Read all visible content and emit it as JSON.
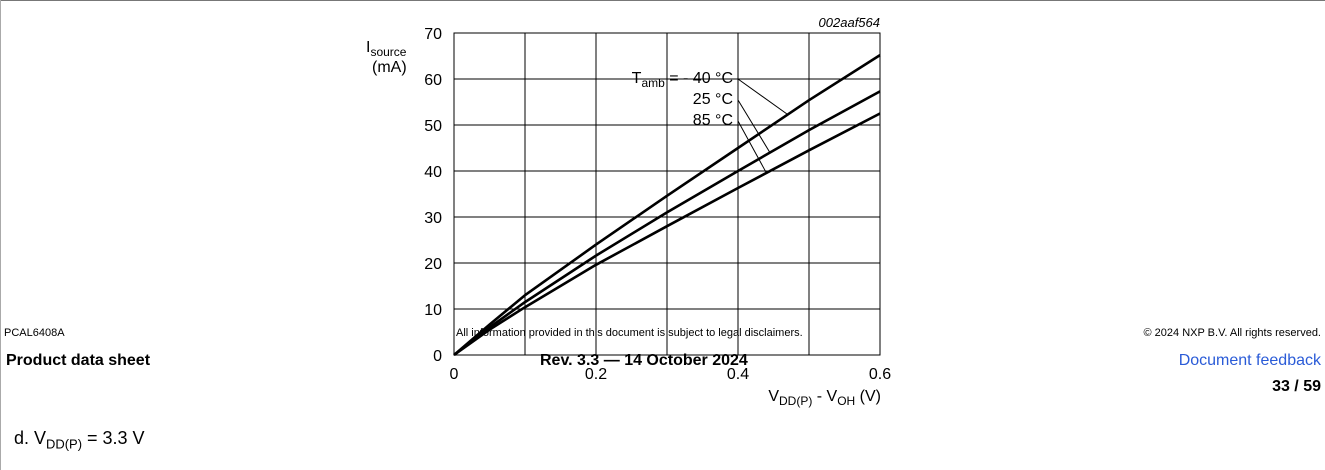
{
  "page": {
    "product": "PCAL6408A",
    "disclaimer": "All information provided in this document is subject to legal disclaimers.",
    "copyright": "© 2024 NXP B.V. All rights reserved.",
    "doc_type": "Product data sheet",
    "revision": "Rev. 3.3 — 14 October 2024",
    "feedback_link": "Document feedback",
    "page_number": "33 / 59"
  },
  "caption": {
    "prefix": "d. V",
    "sub": "DD(P)",
    "suffix": " = 3.3 V"
  },
  "chart_data": {
    "type": "line",
    "figure_id": "002aaf564",
    "ylabel_main": "I",
    "ylabel_sub": "source",
    "ylabel_unit": "(mA)",
    "xlabel_a": "V",
    "xlabel_a_sub": "DD(P)",
    "xlabel_mid": " - V",
    "xlabel_b_sub": "OH",
    "xlabel_unit": " (V)",
    "xlim": [
      0,
      0.6
    ],
    "ylim": [
      0,
      70
    ],
    "x_ticks": [
      0,
      0.2,
      0.4,
      0.6
    ],
    "x_tick_labels": [
      "0",
      "0.2",
      "0.4",
      "0.6"
    ],
    "x_grid": [
      0,
      0.1,
      0.2,
      0.3,
      0.4,
      0.5,
      0.6
    ],
    "y_ticks": [
      0,
      10,
      20,
      30,
      40,
      50,
      60,
      70
    ],
    "y_tick_labels": [
      "0",
      "10",
      "20",
      "30",
      "40",
      "50",
      "60",
      "70"
    ],
    "grid": true,
    "legend_prefix": "T",
    "legend_prefix_sub": "amb",
    "legend_equals": " = ",
    "series": [
      {
        "name": "- 40 °C",
        "x": [
          0,
          0.05,
          0.1,
          0.2,
          0.3,
          0.4,
          0.5,
          0.6
        ],
        "y": [
          0,
          6.6,
          13,
          24,
          34.6,
          45,
          55.4,
          65.2
        ]
      },
      {
        "name": "25 °C",
        "x": [
          0,
          0.05,
          0.1,
          0.2,
          0.3,
          0.4,
          0.5,
          0.6
        ],
        "y": [
          0,
          6,
          11.5,
          21.6,
          31,
          40,
          48.9,
          57.3
        ]
      },
      {
        "name": "85 °C",
        "x": [
          0,
          0.05,
          0.1,
          0.2,
          0.3,
          0.4,
          0.5,
          0.6
        ],
        "y": [
          0,
          5.5,
          10.4,
          19.6,
          28,
          36.3,
          44.5,
          52.5
        ]
      }
    ]
  }
}
